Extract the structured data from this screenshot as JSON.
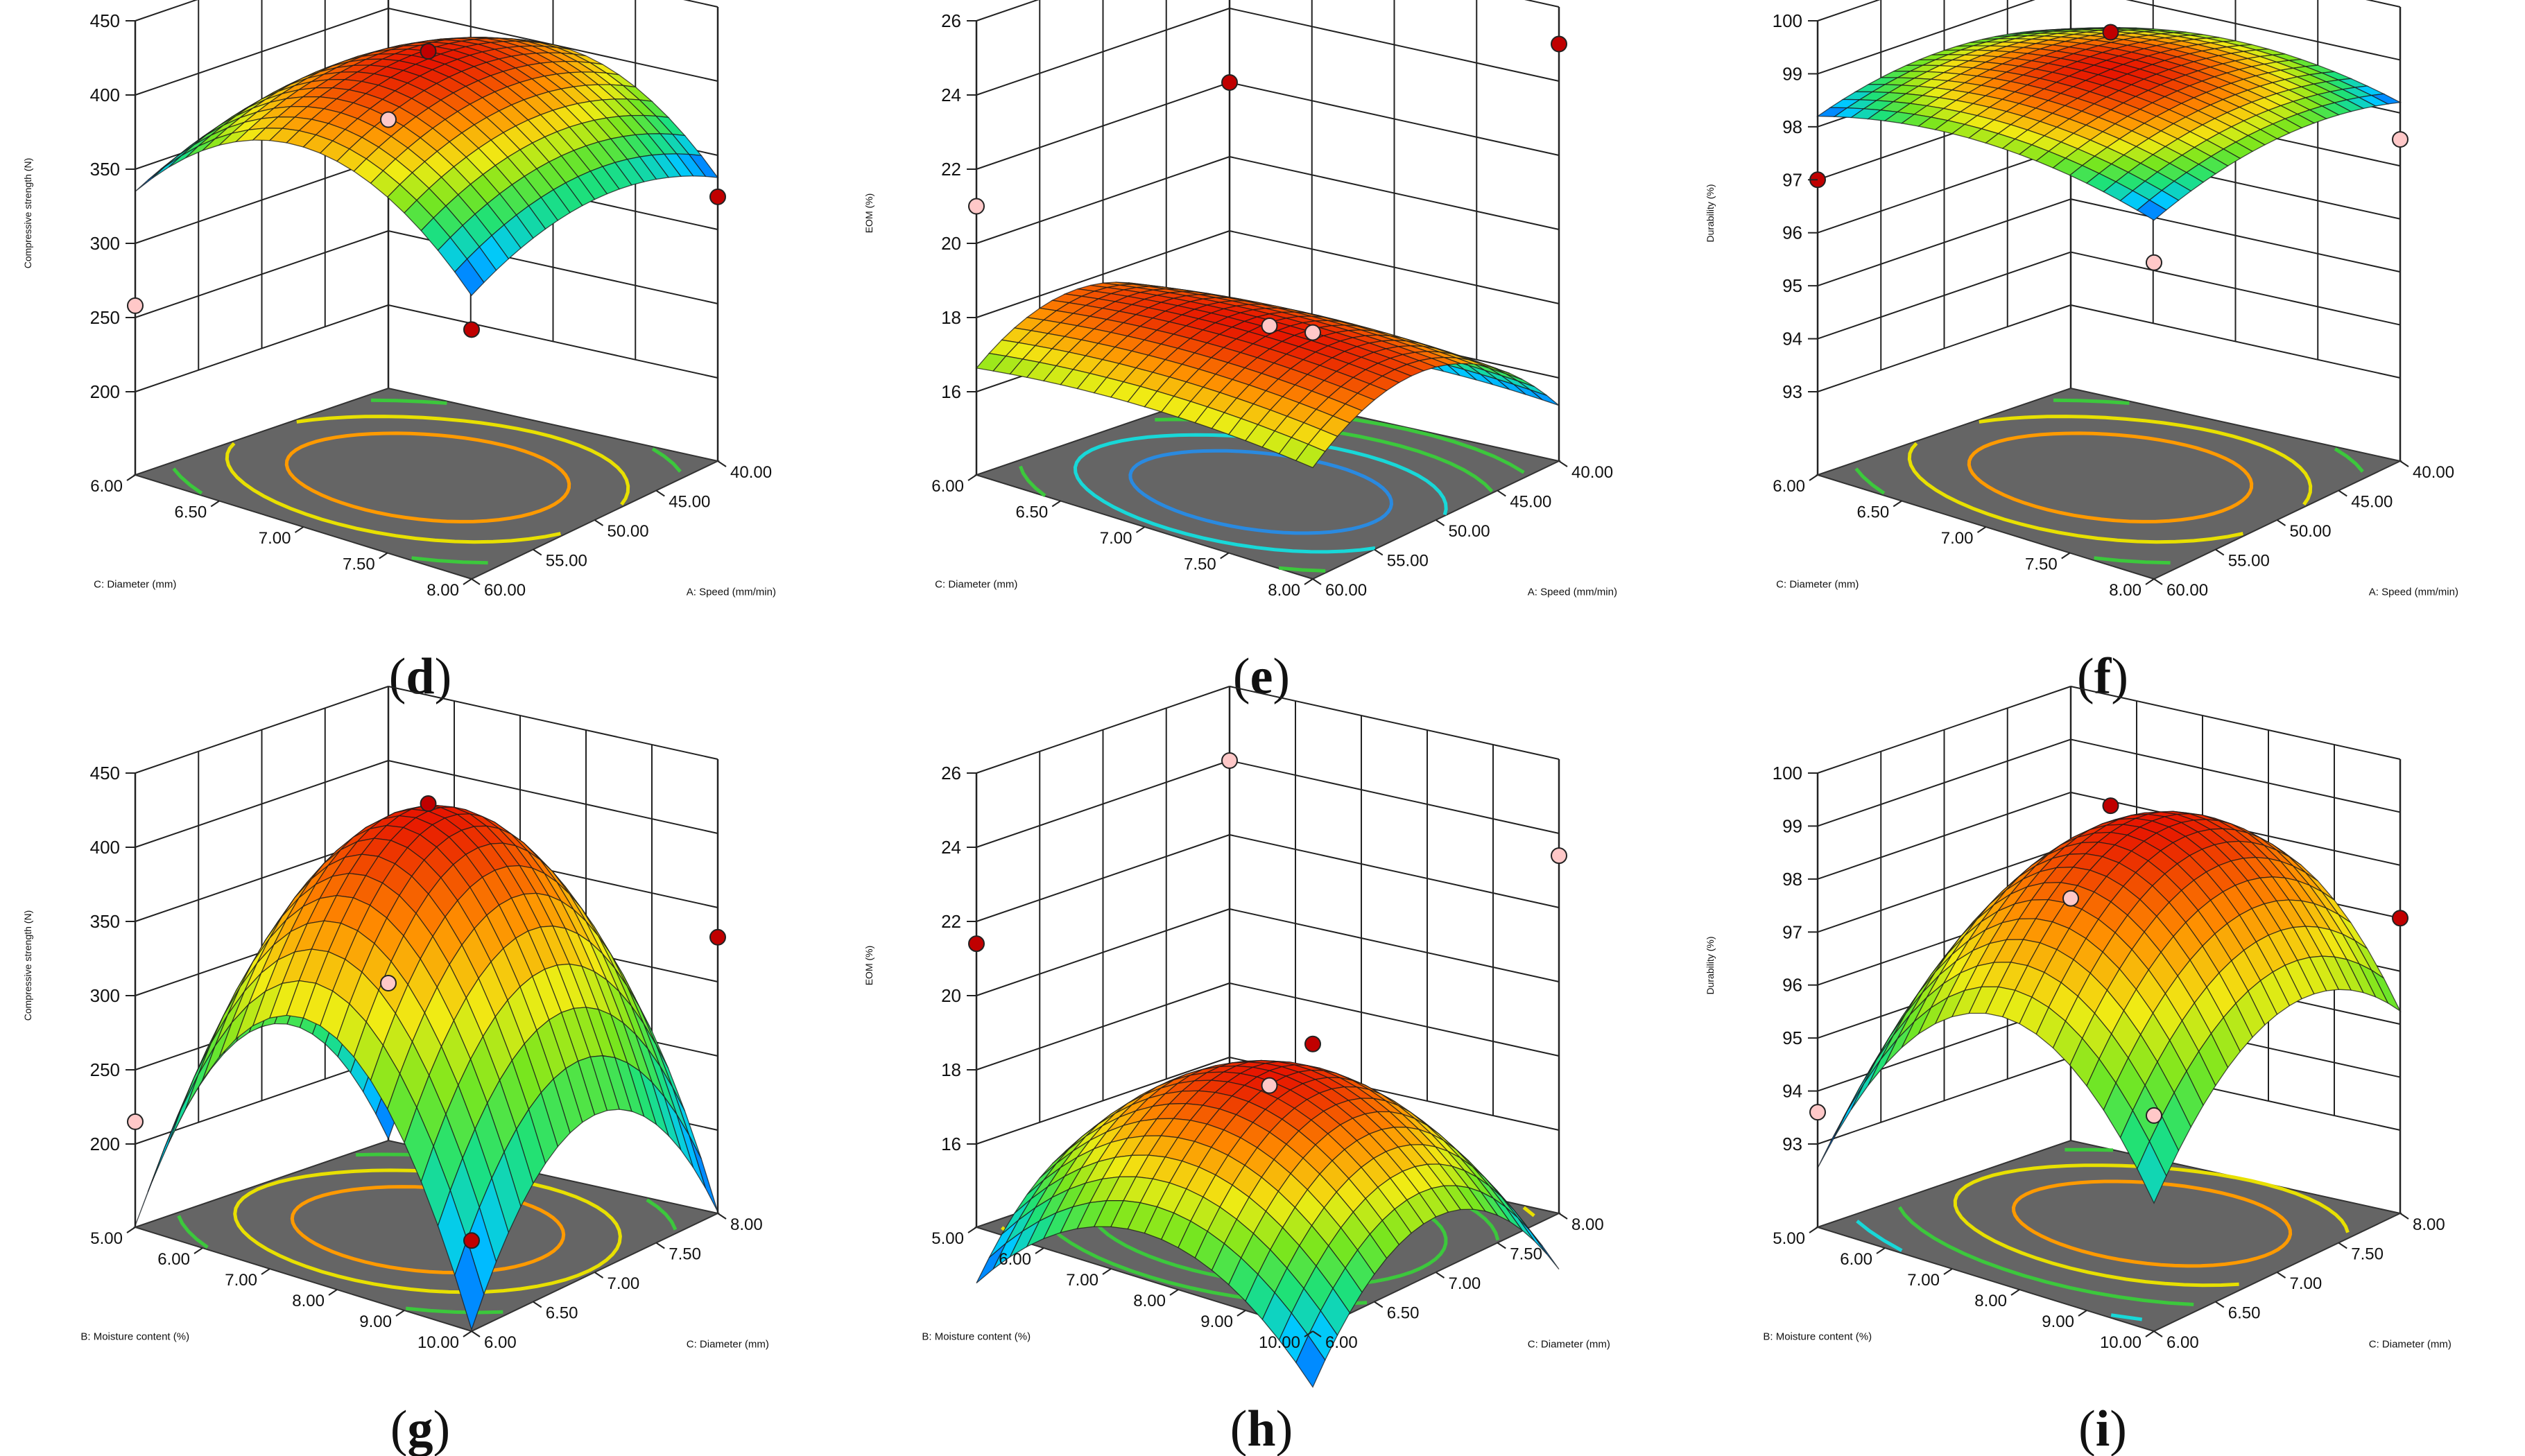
{
  "colors": {
    "floor": "#656565",
    "grid": "#222222",
    "mesh": "#1a1a1a",
    "point_high": "#c00000",
    "point_low": "#ffc8c8",
    "contour_inner_blue": "#2a8ae0",
    "contour_cyan": "#18d8d8",
    "contour_green": "#3cc83c",
    "contour_yellow": "#e8e000",
    "contour_orange": "#ff9a00"
  },
  "chart_data": [
    {
      "id": "d",
      "panel_label": "d",
      "type": "surface3d",
      "zlabel": "Compressive strength (N)",
      "zlim": [
        200,
        450
      ],
      "zticks": [
        "200",
        "250",
        "300",
        "350",
        "400",
        "450"
      ],
      "left_axis": {
        "label": "C: Diameter (mm)",
        "range": [
          6.0,
          8.0
        ],
        "ticks": [
          "6.00",
          "6.50",
          "7.00",
          "7.50",
          "8.00"
        ]
      },
      "right_axis": {
        "label": "A: Speed (mm/min)",
        "range": [
          60.0,
          40.0
        ],
        "ticks": [
          "60.00",
          "55.00",
          "50.00",
          "45.00",
          "40.00"
        ]
      },
      "model": {
        "z0": 425,
        "ku": 260,
        "kv": 100,
        "center_u": 0.5,
        "center_v": 0.5,
        "kuv": 0
      },
      "contour": {
        "rx": 0.36,
        "ry": 0.3,
        "rings": [
          "contour_orange",
          "contour_yellow",
          "contour_green",
          "contour_cyan"
        ]
      },
      "design_points": [
        {
          "u": 0.0,
          "v": 0.0,
          "z": 258,
          "high": false
        },
        {
          "u": 0.5,
          "v": 0.5,
          "z": 430,
          "high": true
        },
        {
          "u": 0.0,
          "v": 1.0,
          "z": 325,
          "high": false
        },
        {
          "u": 1.0,
          "v": 0.0,
          "z": 312,
          "high": true
        },
        {
          "u": 1.0,
          "v": 1.0,
          "z": 322,
          "high": true
        }
      ]
    },
    {
      "id": "e",
      "panel_label": "e",
      "type": "surface3d",
      "zlabel": "EOM (%)",
      "zlim": [
        16,
        26
      ],
      "zticks": [
        "16",
        "18",
        "20",
        "22",
        "24",
        "26"
      ],
      "left_axis": {
        "label": "C: Diameter (mm)",
        "range": [
          6.0,
          8.0
        ],
        "ticks": [
          "6.00",
          "6.50",
          "7.00",
          "7.50",
          "8.00"
        ]
      },
      "right_axis": {
        "label": "A: Speed (mm/min)",
        "range": [
          60.0,
          40.0
        ],
        "ticks": [
          "60.00",
          "55.00",
          "50.00",
          "45.00",
          "40.00"
        ]
      },
      "model": {
        "z0": 18.2,
        "ku": 1.2,
        "kv": 7.5,
        "center_u": 0.55,
        "center_v": 0.4,
        "kuv": 0
      },
      "contour": {
        "rx": 0.34,
        "ry": 0.26,
        "rings": [
          "contour_inner_blue",
          "contour_cyan",
          "contour_green",
          "contour_green"
        ]
      },
      "design_points": [
        {
          "u": 0.0,
          "v": 0.0,
          "z": 21.0,
          "high": false
        },
        {
          "u": 0.5,
          "v": 0.5,
          "z": 17.8,
          "high": false
        },
        {
          "u": 0.0,
          "v": 1.0,
          "z": 22.0,
          "high": true
        },
        {
          "u": 1.0,
          "v": 0.0,
          "z": 20.4,
          "high": false
        },
        {
          "u": 1.0,
          "v": 1.0,
          "z": 25.0,
          "high": true
        }
      ]
    },
    {
      "id": "f",
      "panel_label": "f",
      "type": "surface3d",
      "zlabel": "Durability (%)",
      "zlim": [
        93,
        100
      ],
      "zticks": [
        "93",
        "94",
        "95",
        "96",
        "97",
        "98",
        "99",
        "100"
      ],
      "left_axis": {
        "label": "C: Diameter (mm)",
        "range": [
          6.0,
          8.0
        ],
        "ticks": [
          "6.00",
          "6.50",
          "7.00",
          "7.50",
          "8.00"
        ]
      },
      "right_axis": {
        "label": "A: Speed (mm/min)",
        "range": [
          60.0,
          40.0
        ],
        "ticks": [
          "60.00",
          "55.00",
          "50.00",
          "45.00",
          "40.00"
        ]
      },
      "model": {
        "z0": 99.1,
        "ku": 1.9,
        "kv": 1.7,
        "center_u": 0.5,
        "center_v": 0.5,
        "kuv": 0
      },
      "contour": {
        "rx": 0.36,
        "ry": 0.3,
        "rings": [
          "contour_orange",
          "contour_yellow",
          "contour_green",
          "contour_cyan"
        ]
      },
      "design_points": [
        {
          "u": 0.0,
          "v": 0.0,
          "z": 97.0,
          "high": true
        },
        {
          "u": 0.5,
          "v": 0.5,
          "z": 99.8,
          "high": true
        },
        {
          "u": 1.0,
          "v": 0.0,
          "z": 97.4,
          "high": false
        },
        {
          "u": 1.0,
          "v": 1.0,
          "z": 97.5,
          "high": false
        }
      ]
    },
    {
      "id": "g",
      "panel_label": "g",
      "type": "surface3d",
      "zlabel": "Compressive strength (N)",
      "zlim": [
        200,
        450
      ],
      "zticks": [
        "200",
        "250",
        "300",
        "350",
        "400",
        "450"
      ],
      "left_axis": {
        "label": "B: Moisture content (%)",
        "range": [
          5.0,
          10.0
        ],
        "ticks": [
          "5.00",
          "6.00",
          "7.00",
          "8.00",
          "9.00",
          "10.00"
        ]
      },
      "right_axis": {
        "label": "C: Diameter (mm)",
        "range": [
          6.0,
          8.0
        ],
        "ticks": [
          "6.00",
          "6.50",
          "7.00",
          "7.50",
          "8.00"
        ]
      },
      "model": {
        "z0": 425,
        "ku": 700,
        "kv": 420,
        "center_u": 0.5,
        "center_v": 0.5,
        "kuv": 0
      },
      "contour": {
        "rx": 0.34,
        "ry": 0.3,
        "rings": [
          "contour_orange",
          "contour_yellow",
          "contour_green",
          "contour_cyan"
        ]
      },
      "design_points": [
        {
          "u": 0.0,
          "v": 0.0,
          "z": 215,
          "high": false
        },
        {
          "u": 0.5,
          "v": 0.5,
          "z": 430,
          "high": true
        },
        {
          "u": 1.0,
          "v": 0.0,
          "z": 205,
          "high": true
        },
        {
          "u": 1.0,
          "v": 1.0,
          "z": 330,
          "high": true
        },
        {
          "u": 0.0,
          "v": 1.0,
          "z": 250,
          "high": false
        }
      ]
    },
    {
      "id": "h",
      "panel_label": "h",
      "type": "surface3d",
      "zlabel": "EOM (%)",
      "zlim": [
        16,
        26
      ],
      "zticks": [
        "16",
        "18",
        "20",
        "22",
        "24",
        "26"
      ],
      "left_axis": {
        "label": "B: Moisture content (%)",
        "range": [
          5.0,
          10.0
        ],
        "ticks": [
          "5.00",
          "6.00",
          "7.00",
          "8.00",
          "9.00",
          "10.00"
        ]
      },
      "right_axis": {
        "label": "C: Diameter (mm)",
        "range": [
          6.0,
          8.0
        ],
        "ticks": [
          "6.00",
          "6.50",
          "7.00",
          "7.50",
          "8.00"
        ]
      },
      "model": {
        "z0": 18.0,
        "ku": 11.0,
        "kv": 12.0,
        "center_u": 0.5,
        "center_v": 0.5,
        "kuv": 0
      },
      "contour": {
        "rx": 0.32,
        "ry": 0.26,
        "rings": [
          "contour_inner_blue",
          "contour_green",
          "contour_green",
          "contour_yellow"
        ]
      },
      "design_points": [
        {
          "u": 0.0,
          "v": 0.0,
          "z": 21.4,
          "high": true
        },
        {
          "u": 0.5,
          "v": 0.5,
          "z": 17.6,
          "high": false
        },
        {
          "u": 0.0,
          "v": 1.0,
          "z": 24.0,
          "high": false
        },
        {
          "u": 1.0,
          "v": 0.0,
          "z": 21.5,
          "high": true
        },
        {
          "u": 1.0,
          "v": 1.0,
          "z": 23.4,
          "high": false
        }
      ]
    },
    {
      "id": "i",
      "panel_label": "i",
      "type": "surface3d",
      "zlabel": "Durability (%)",
      "zlim": [
        93,
        100
      ],
      "zticks": [
        "93",
        "94",
        "95",
        "96",
        "97",
        "98",
        "99",
        "100"
      ],
      "left_axis": {
        "label": "B: Moisture content (%)",
        "range": [
          5.0,
          10.0
        ],
        "ticks": [
          "5.00",
          "6.00",
          "7.00",
          "8.00",
          "9.00",
          "10.00"
        ]
      },
      "right_axis": {
        "label": "C: Diameter (mm)",
        "range": [
          6.0,
          8.0
        ],
        "ticks": [
          "6.00",
          "6.50",
          "7.00",
          "7.50",
          "8.00"
        ]
      },
      "model": {
        "z0": 99.0,
        "ku": 13.0,
        "kv": 7.0,
        "center_u": 0.55,
        "center_v": 0.6,
        "kuv": 0
      },
      "contour": {
        "rx": 0.36,
        "ry": 0.28,
        "rings": [
          "contour_orange",
          "contour_yellow",
          "contour_green",
          "contour_cyan"
        ]
      },
      "design_points": [
        {
          "u": 0.0,
          "v": 0.0,
          "z": 93.6,
          "high": false
        },
        {
          "u": 0.5,
          "v": 0.5,
          "z": 99.4,
          "high": true
        },
        {
          "u": 1.0,
          "v": 0.0,
          "z": 95.5,
          "high": false
        },
        {
          "u": 1.0,
          "v": 1.0,
          "z": 97.0,
          "high": true
        },
        {
          "u": 0.0,
          "v": 1.0,
          "z": 96.0,
          "high": false
        }
      ]
    }
  ]
}
